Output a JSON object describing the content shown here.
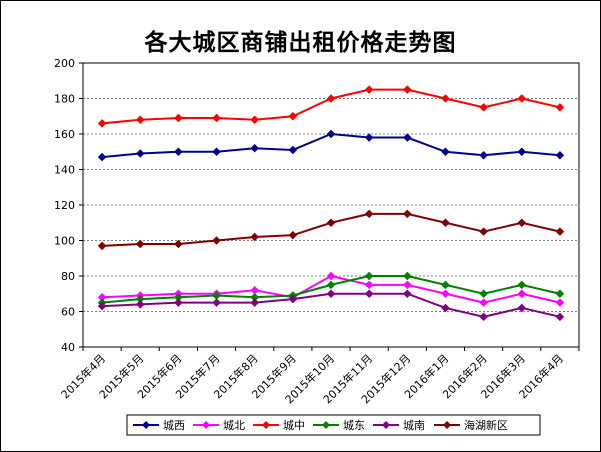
{
  "chart_data": {
    "type": "line",
    "title": "各大城区商铺出租价格走势图",
    "xlabel": "",
    "ylabel": "",
    "ylim": [
      40,
      200
    ],
    "yticks": [
      40,
      60,
      80,
      100,
      120,
      140,
      160,
      180,
      200
    ],
    "grid": true,
    "legend_position": "bottom",
    "categories": [
      "2015年4月",
      "2015年5月",
      "2015年6月",
      "2015年7月",
      "2015年8月",
      "2015年9月",
      "2015年10月",
      "2015年11月",
      "2015年12月",
      "2016年1月",
      "2016年2月",
      "2016年3月",
      "2016年4月"
    ],
    "series": [
      {
        "name": "城西",
        "color": "#00008B",
        "marker": "diamond",
        "values": [
          147,
          149,
          150,
          150,
          152,
          151,
          160,
          158,
          158,
          150,
          148,
          150,
          148
        ]
      },
      {
        "name": "城北",
        "color": "#FF00FF",
        "marker": "diamond",
        "values": [
          68,
          69,
          70,
          70,
          72,
          68,
          80,
          75,
          75,
          70,
          65,
          70,
          65
        ]
      },
      {
        "name": "城中",
        "color": "#FF0000",
        "marker": "diamond",
        "values": [
          166,
          168,
          169,
          169,
          168,
          170,
          180,
          185,
          185,
          180,
          175,
          180,
          175
        ]
      },
      {
        "name": "城东",
        "color": "#008000",
        "marker": "diamond",
        "values": [
          65,
          67,
          68,
          69,
          68,
          69,
          75,
          80,
          80,
          75,
          70,
          75,
          70
        ]
      },
      {
        "name": "城南",
        "color": "#800080",
        "marker": "diamond",
        "values": [
          63,
          64,
          65,
          65,
          65,
          67,
          70,
          70,
          70,
          62,
          57,
          62,
          57
        ]
      },
      {
        "name": "海湖新区",
        "color": "#800000",
        "marker": "diamond",
        "values": [
          97,
          98,
          98,
          100,
          102,
          103,
          110,
          115,
          115,
          110,
          105,
          110,
          105
        ]
      }
    ]
  }
}
